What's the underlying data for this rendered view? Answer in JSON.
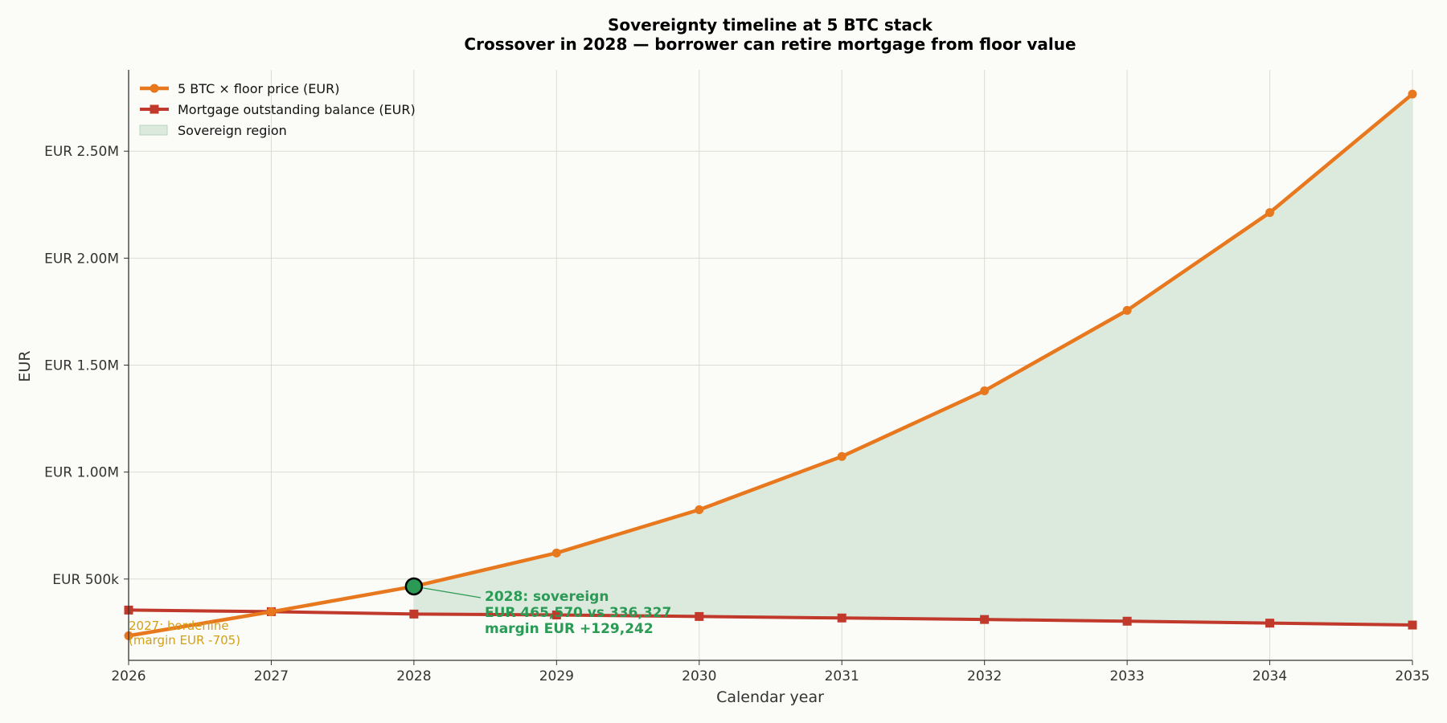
{
  "chart_data": {
    "type": "line",
    "title": "Sovereignty timeline at 5 BTC stack",
    "subtitle": "Crossover in 2028 — borrower can retire mortgage from floor value",
    "xlabel": "Calendar year",
    "ylabel": "EUR",
    "x": [
      2026,
      2027,
      2028,
      2029,
      2030,
      2031,
      2032,
      2033,
      2034,
      2035
    ],
    "x_tick_labels": [
      "2026",
      "2027",
      "2028",
      "2029",
      "2030",
      "2031",
      "2032",
      "2033",
      "2034",
      "2035"
    ],
    "xlim": [
      2026,
      2035
    ],
    "ylim": [
      120000,
      2880000
    ],
    "y_ticks": [
      500000,
      1000000,
      1500000,
      2000000,
      2500000
    ],
    "y_tick_labels": [
      "EUR 500k",
      "EUR 1.00M",
      "EUR 1.50M",
      "EUR 2.00M",
      "EUR 2.50M"
    ],
    "grid": true,
    "legend_position": "top-left",
    "series": [
      {
        "name": "5 BTC × floor price (EUR)",
        "marker": "circle",
        "color": "#e8781e",
        "values": [
          235000,
          347000,
          465570,
          622000,
          824000,
          1073000,
          1380000,
          1756000,
          2213000,
          2767000
        ]
      },
      {
        "name": "Mortgage outstanding balance (EUR)",
        "marker": "square",
        "color": "#c0392b",
        "values": [
          355000,
          347500,
          336327,
          332000,
          325000,
          318000,
          311000,
          303000,
          294000,
          285000
        ]
      }
    ],
    "fill_region": {
      "name": "Sovereign region",
      "color": "#dbeadd",
      "from_year": 2028
    },
    "annotations": [
      {
        "year": 2028,
        "color": "#2a9a55",
        "lines": [
          "2028: sovereign",
          "EUR 465,570 vs 336,327",
          "margin EUR +129,242"
        ]
      },
      {
        "year": 2026,
        "color": "#d4a017",
        "lines": [
          "2027: borderline",
          "(margin EUR -705)"
        ]
      }
    ]
  }
}
